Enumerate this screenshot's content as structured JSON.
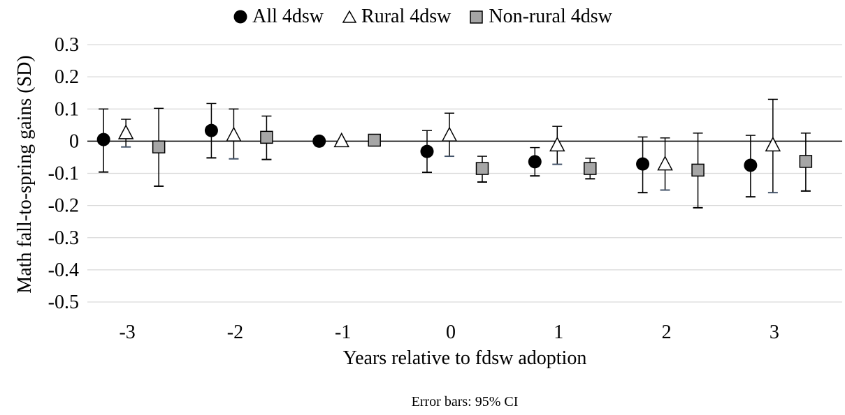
{
  "chart_data": {
    "type": "scatter",
    "xlabel": "Years relative to fdsw adoption",
    "ylabel": "Math fall-to-spring gains (SD)",
    "note": "Error bars: 95% CI",
    "categories": [
      "-3",
      "-2",
      "-1",
      "0",
      "1",
      "2",
      "3"
    ],
    "ylim": [
      -0.5,
      0.3
    ],
    "yticks": [
      "0.3",
      "0.2",
      "0.1",
      "0",
      "-0.1",
      "-0.2",
      "-0.3",
      "-0.4",
      "-0.5"
    ],
    "grid": true,
    "legend_position": "top",
    "series": [
      {
        "name": "All 4dsw",
        "marker": "circle",
        "color": "#000000",
        "values": [
          0.005,
          0.033,
          0.0,
          -0.032,
          -0.064,
          -0.071,
          -0.075
        ],
        "ci_low": [
          -0.096,
          -0.052,
          null,
          -0.097,
          -0.108,
          -0.16,
          -0.173
        ],
        "ci_high": [
          0.1,
          0.117,
          null,
          0.033,
          -0.02,
          0.013,
          0.018
        ]
      },
      {
        "name": "Rural 4dsw",
        "marker": "triangle",
        "color": "#ffffff",
        "values": [
          0.025,
          0.018,
          0.0,
          0.018,
          -0.013,
          -0.072,
          -0.013
        ],
        "ci_low": [
          -0.018,
          -0.055,
          null,
          -0.047,
          -0.072,
          -0.152,
          -0.16
        ],
        "ci_high": [
          0.068,
          0.1,
          null,
          0.087,
          0.046,
          0.01,
          0.13
        ]
      },
      {
        "name": "Non-rural 4dsw",
        "marker": "square",
        "color": "#a6a6a6",
        "values": [
          -0.018,
          0.012,
          0.003,
          -0.085,
          -0.085,
          -0.09,
          -0.063
        ],
        "ci_low": [
          -0.14,
          -0.057,
          null,
          -0.127,
          -0.117,
          -0.207,
          -0.155
        ],
        "ci_high": [
          0.102,
          0.078,
          null,
          -0.047,
          -0.053,
          0.025,
          0.025
        ]
      }
    ]
  }
}
